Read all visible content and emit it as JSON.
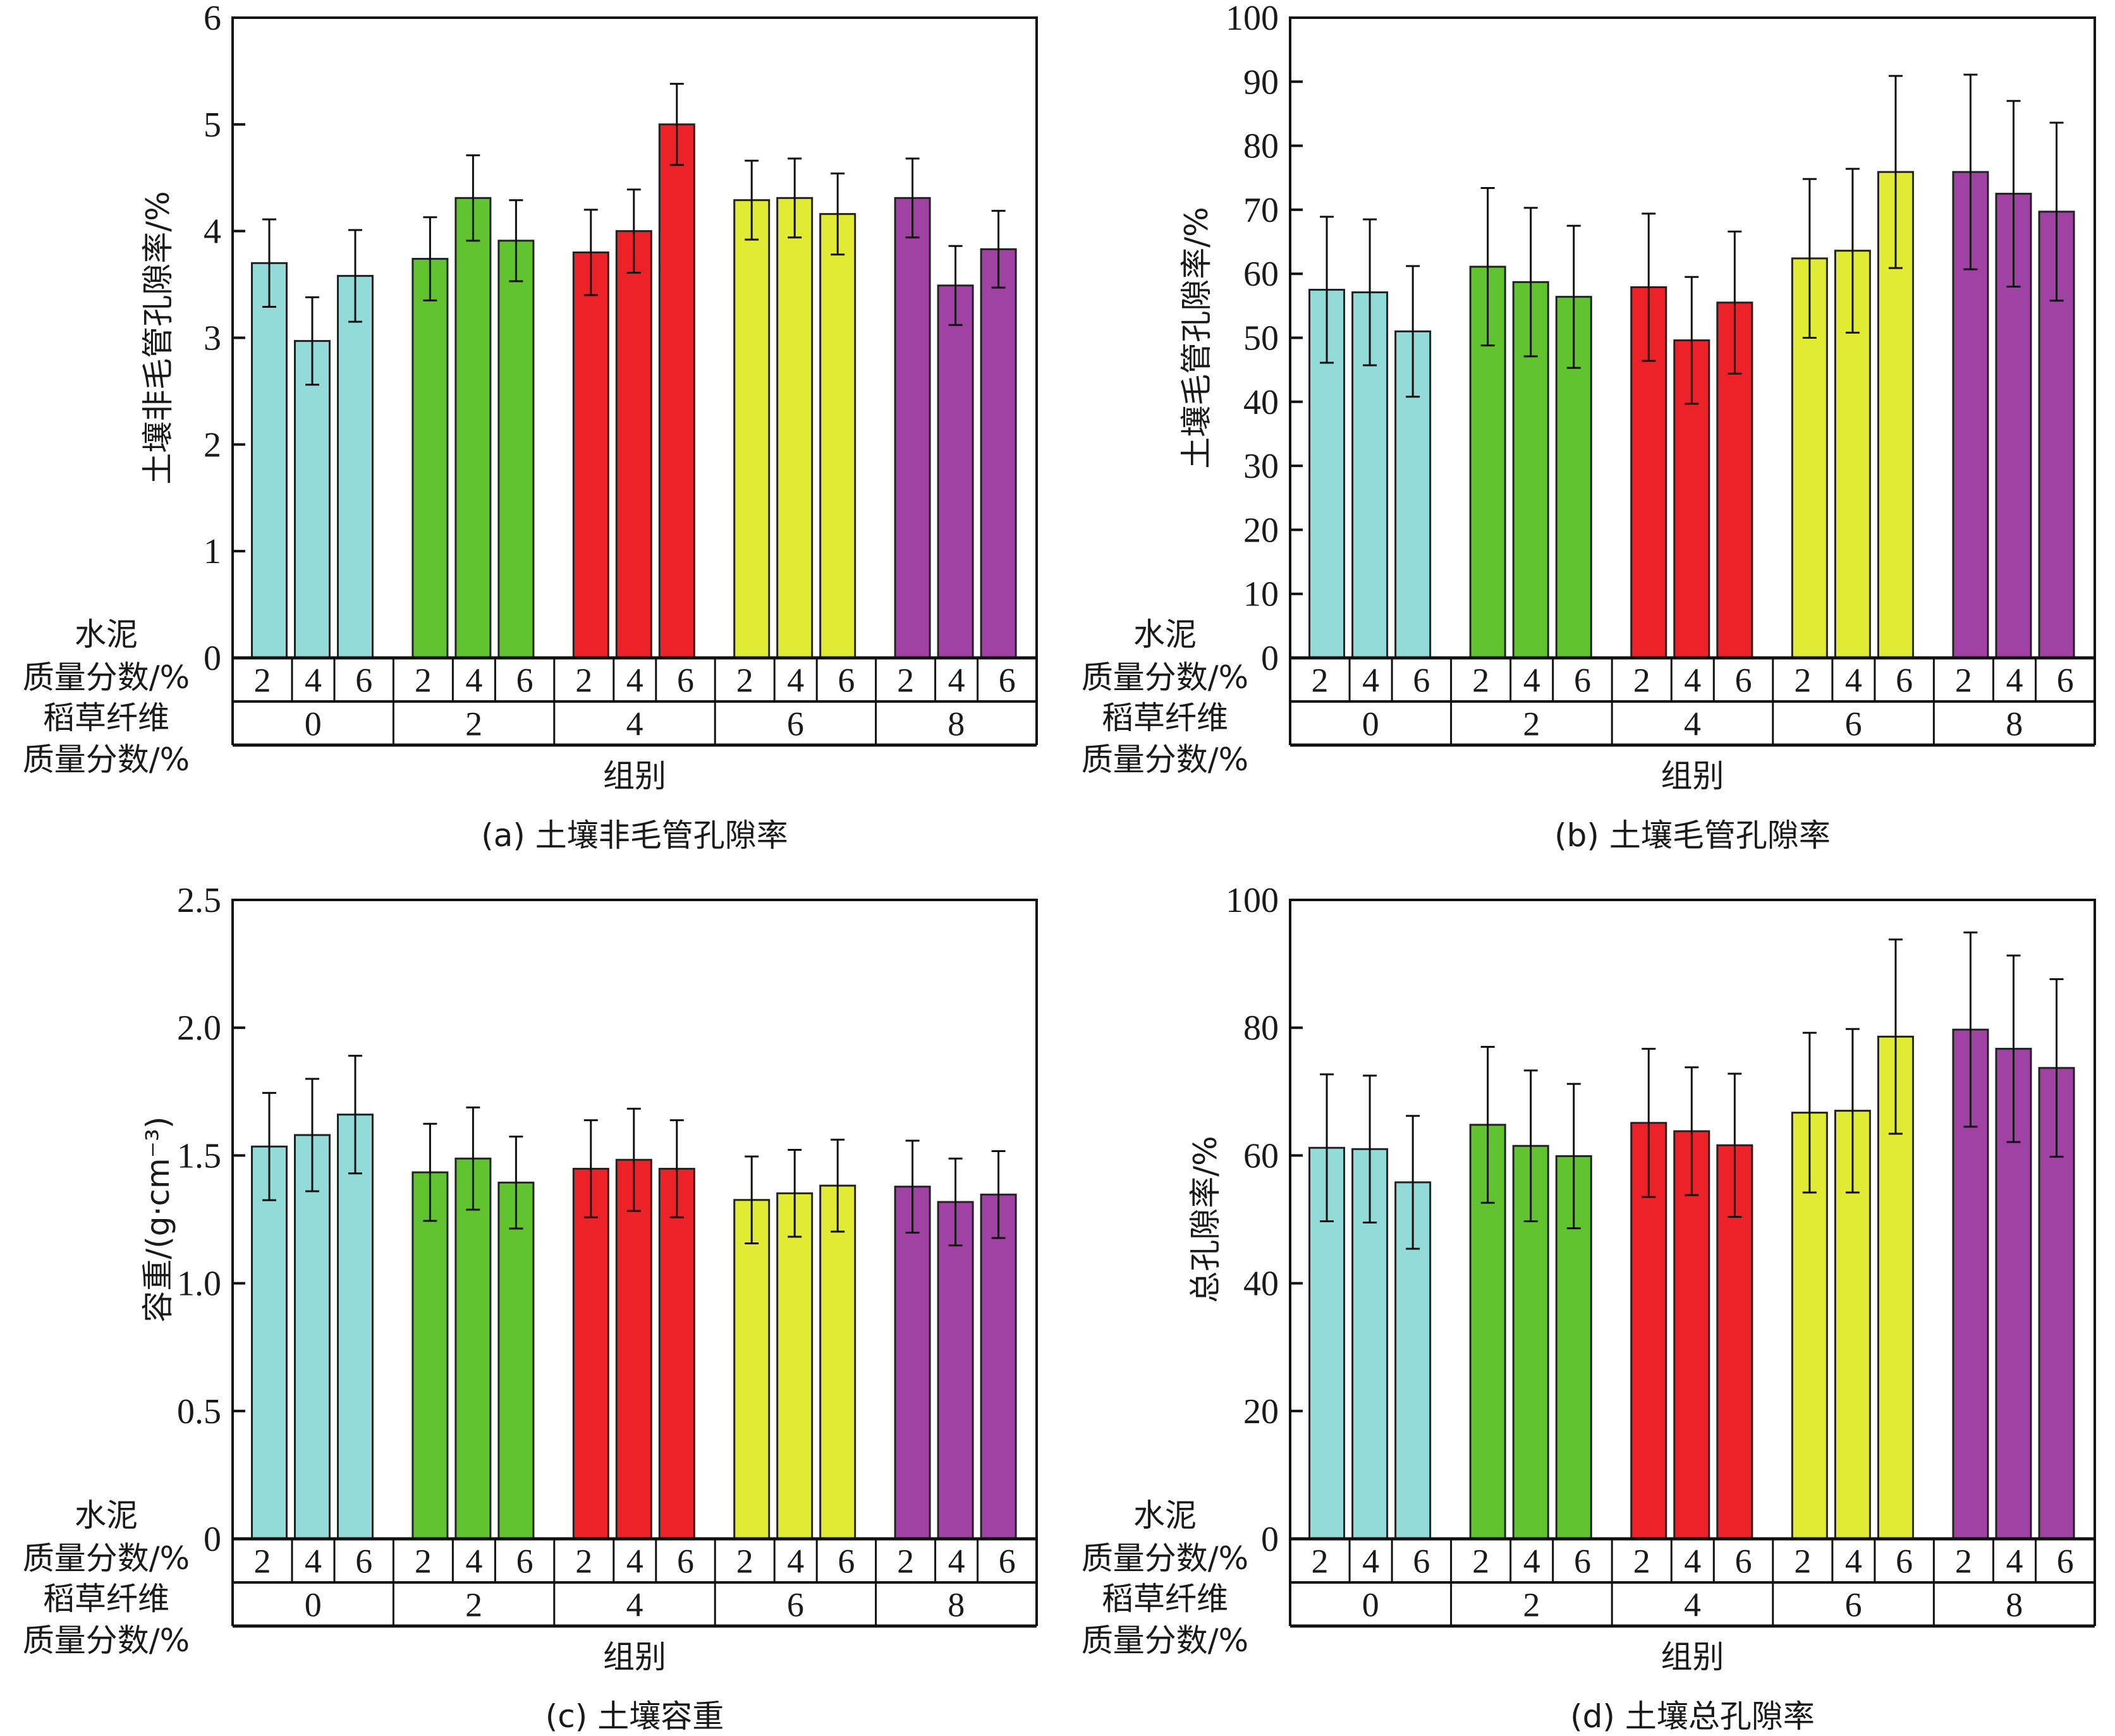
{
  "figure": {
    "row_label_cement": [
      "水泥",
      "质量分数/%"
    ],
    "row_label_straw": [
      "稻草纤维",
      "质量分数/%"
    ]
  },
  "chart_data": [
    {
      "id": "a",
      "type": "bar",
      "caption": "(a) 土壤非毛管孔隙率",
      "xlabel": "组别",
      "ylabel": "土壤非毛管孔隙率/%",
      "ylim": [
        0,
        6
      ],
      "yticks": [
        0,
        1,
        2,
        3,
        4,
        5,
        6
      ],
      "ytick_labels": [
        "0",
        "1",
        "2",
        "3",
        "4",
        "5",
        "6"
      ],
      "grid": false,
      "error_bars": true,
      "groups": [
        {
          "straw": "0",
          "color": "#92dbd9",
          "cement": [
            "2",
            "4",
            "6"
          ],
          "values": [
            3.7,
            2.97,
            3.58
          ],
          "errors": [
            0.41,
            0.41,
            0.43
          ]
        },
        {
          "straw": "2",
          "color": "#62c331",
          "cement": [
            "2",
            "4",
            "6"
          ],
          "values": [
            3.74,
            4.31,
            3.91
          ],
          "errors": [
            0.39,
            0.4,
            0.38
          ]
        },
        {
          "straw": "4",
          "color": "#ed2229",
          "cement": [
            "2",
            "4",
            "6"
          ],
          "values": [
            3.8,
            4.0,
            5.0
          ],
          "errors": [
            0.4,
            0.39,
            0.38
          ]
        },
        {
          "straw": "6",
          "color": "#e2eb33",
          "cement": [
            "2",
            "4",
            "6"
          ],
          "values": [
            4.29,
            4.31,
            4.16
          ],
          "errors": [
            0.37,
            0.37,
            0.38
          ]
        },
        {
          "straw": "8",
          "color": "#a041a4",
          "cement": [
            "2",
            "4",
            "6"
          ],
          "values": [
            4.31,
            3.49,
            3.83
          ],
          "errors": [
            0.37,
            0.37,
            0.36
          ]
        }
      ]
    },
    {
      "id": "b",
      "type": "bar",
      "caption": "(b) 土壤毛管孔隙率",
      "xlabel": "组别",
      "ylabel": "土壤毛管孔隙率/%",
      "ylim": [
        0,
        100
      ],
      "yticks": [
        0,
        10,
        20,
        30,
        40,
        50,
        60,
        70,
        80,
        90,
        100
      ],
      "ytick_labels": [
        "0",
        "10",
        "20",
        "30",
        "40",
        "50",
        "60",
        "70",
        "80",
        "90",
        "100"
      ],
      "grid": false,
      "error_bars": true,
      "groups": [
        {
          "straw": "0",
          "color": "#92dbd9",
          "cement": [
            "2",
            "4",
            "6"
          ],
          "values": [
            57.5,
            57.1,
            51.0
          ],
          "errors": [
            11.4,
            11.4,
            10.2
          ]
        },
        {
          "straw": "2",
          "color": "#62c331",
          "cement": [
            "2",
            "4",
            "6"
          ],
          "values": [
            61.1,
            58.7,
            56.4
          ],
          "errors": [
            12.3,
            11.6,
            11.1
          ]
        },
        {
          "straw": "4",
          "color": "#ed2229",
          "cement": [
            "2",
            "4",
            "6"
          ],
          "values": [
            57.9,
            49.6,
            55.5
          ],
          "errors": [
            11.5,
            9.9,
            11.1
          ]
        },
        {
          "straw": "6",
          "color": "#e2eb33",
          "cement": [
            "2",
            "4",
            "6"
          ],
          "values": [
            62.4,
            63.6,
            75.9
          ],
          "errors": [
            12.4,
            12.8,
            15.0
          ]
        },
        {
          "straw": "8",
          "color": "#a041a4",
          "cement": [
            "2",
            "4",
            "6"
          ],
          "values": [
            75.9,
            72.5,
            69.7
          ],
          "errors": [
            15.2,
            14.5,
            13.9
          ]
        }
      ]
    },
    {
      "id": "c",
      "type": "bar",
      "caption": "(c) 土壤容重",
      "xlabel": "组别",
      "ylabel": "容重/(g·cm⁻³)",
      "ylim": [
        0,
        2.5
      ],
      "yticks": [
        0,
        0.5,
        1.0,
        1.5,
        2.0,
        2.5
      ],
      "ytick_labels": [
        "0",
        "0.5",
        "1.0",
        "1.5",
        "2.0",
        "2.5"
      ],
      "grid": false,
      "error_bars": true,
      "groups": [
        {
          "straw": "0",
          "color": "#92dbd9",
          "cement": [
            "2",
            "4",
            "6"
          ],
          "values": [
            1.535,
            1.58,
            1.66
          ],
          "errors": [
            0.21,
            0.22,
            0.23
          ]
        },
        {
          "straw": "2",
          "color": "#62c331",
          "cement": [
            "2",
            "4",
            "6"
          ],
          "values": [
            1.434,
            1.488,
            1.394
          ],
          "errors": [
            0.19,
            0.2,
            0.18
          ]
        },
        {
          "straw": "4",
          "color": "#ed2229",
          "cement": [
            "2",
            "4",
            "6"
          ],
          "values": [
            1.448,
            1.483,
            1.448
          ],
          "errors": [
            0.19,
            0.2,
            0.19
          ]
        },
        {
          "straw": "6",
          "color": "#e2eb33",
          "cement": [
            "2",
            "4",
            "6"
          ],
          "values": [
            1.326,
            1.352,
            1.382
          ],
          "errors": [
            0.17,
            0.17,
            0.18
          ]
        },
        {
          "straw": "8",
          "color": "#a041a4",
          "cement": [
            "2",
            "4",
            "6"
          ],
          "values": [
            1.378,
            1.318,
            1.347
          ],
          "errors": [
            0.18,
            0.17,
            0.17
          ]
        }
      ]
    },
    {
      "id": "d",
      "type": "bar",
      "caption": "(d) 土壤总孔隙率",
      "xlabel": "组别",
      "ylabel": "总孔隙率/%",
      "ylim": [
        0,
        100
      ],
      "yticks": [
        0,
        20,
        40,
        60,
        80,
        100
      ],
      "ytick_labels": [
        "0",
        "20",
        "40",
        "60",
        "80",
        "100"
      ],
      "grid": false,
      "error_bars": true,
      "groups": [
        {
          "straw": "0",
          "color": "#92dbd9",
          "cement": [
            "2",
            "4",
            "6"
          ],
          "values": [
            61.2,
            61.0,
            55.8
          ],
          "errors": [
            11.5,
            11.5,
            10.4
          ]
        },
        {
          "straw": "2",
          "color": "#62c331",
          "cement": [
            "2",
            "4",
            "6"
          ],
          "values": [
            64.8,
            61.5,
            59.9
          ],
          "errors": [
            12.2,
            11.8,
            11.3
          ]
        },
        {
          "straw": "4",
          "color": "#ed2229",
          "cement": [
            "2",
            "4",
            "6"
          ],
          "values": [
            65.1,
            63.8,
            61.6
          ],
          "errors": [
            11.6,
            10.0,
            11.2
          ]
        },
        {
          "straw": "6",
          "color": "#e2eb33",
          "cement": [
            "2",
            "4",
            "6"
          ],
          "values": [
            66.7,
            67.0,
            78.6
          ],
          "errors": [
            12.5,
            12.8,
            15.2
          ]
        },
        {
          "straw": "8",
          "color": "#a041a4",
          "cement": [
            "2",
            "4",
            "6"
          ],
          "values": [
            79.7,
            76.7,
            73.7
          ],
          "errors": [
            15.2,
            14.6,
            13.9
          ]
        }
      ]
    }
  ]
}
